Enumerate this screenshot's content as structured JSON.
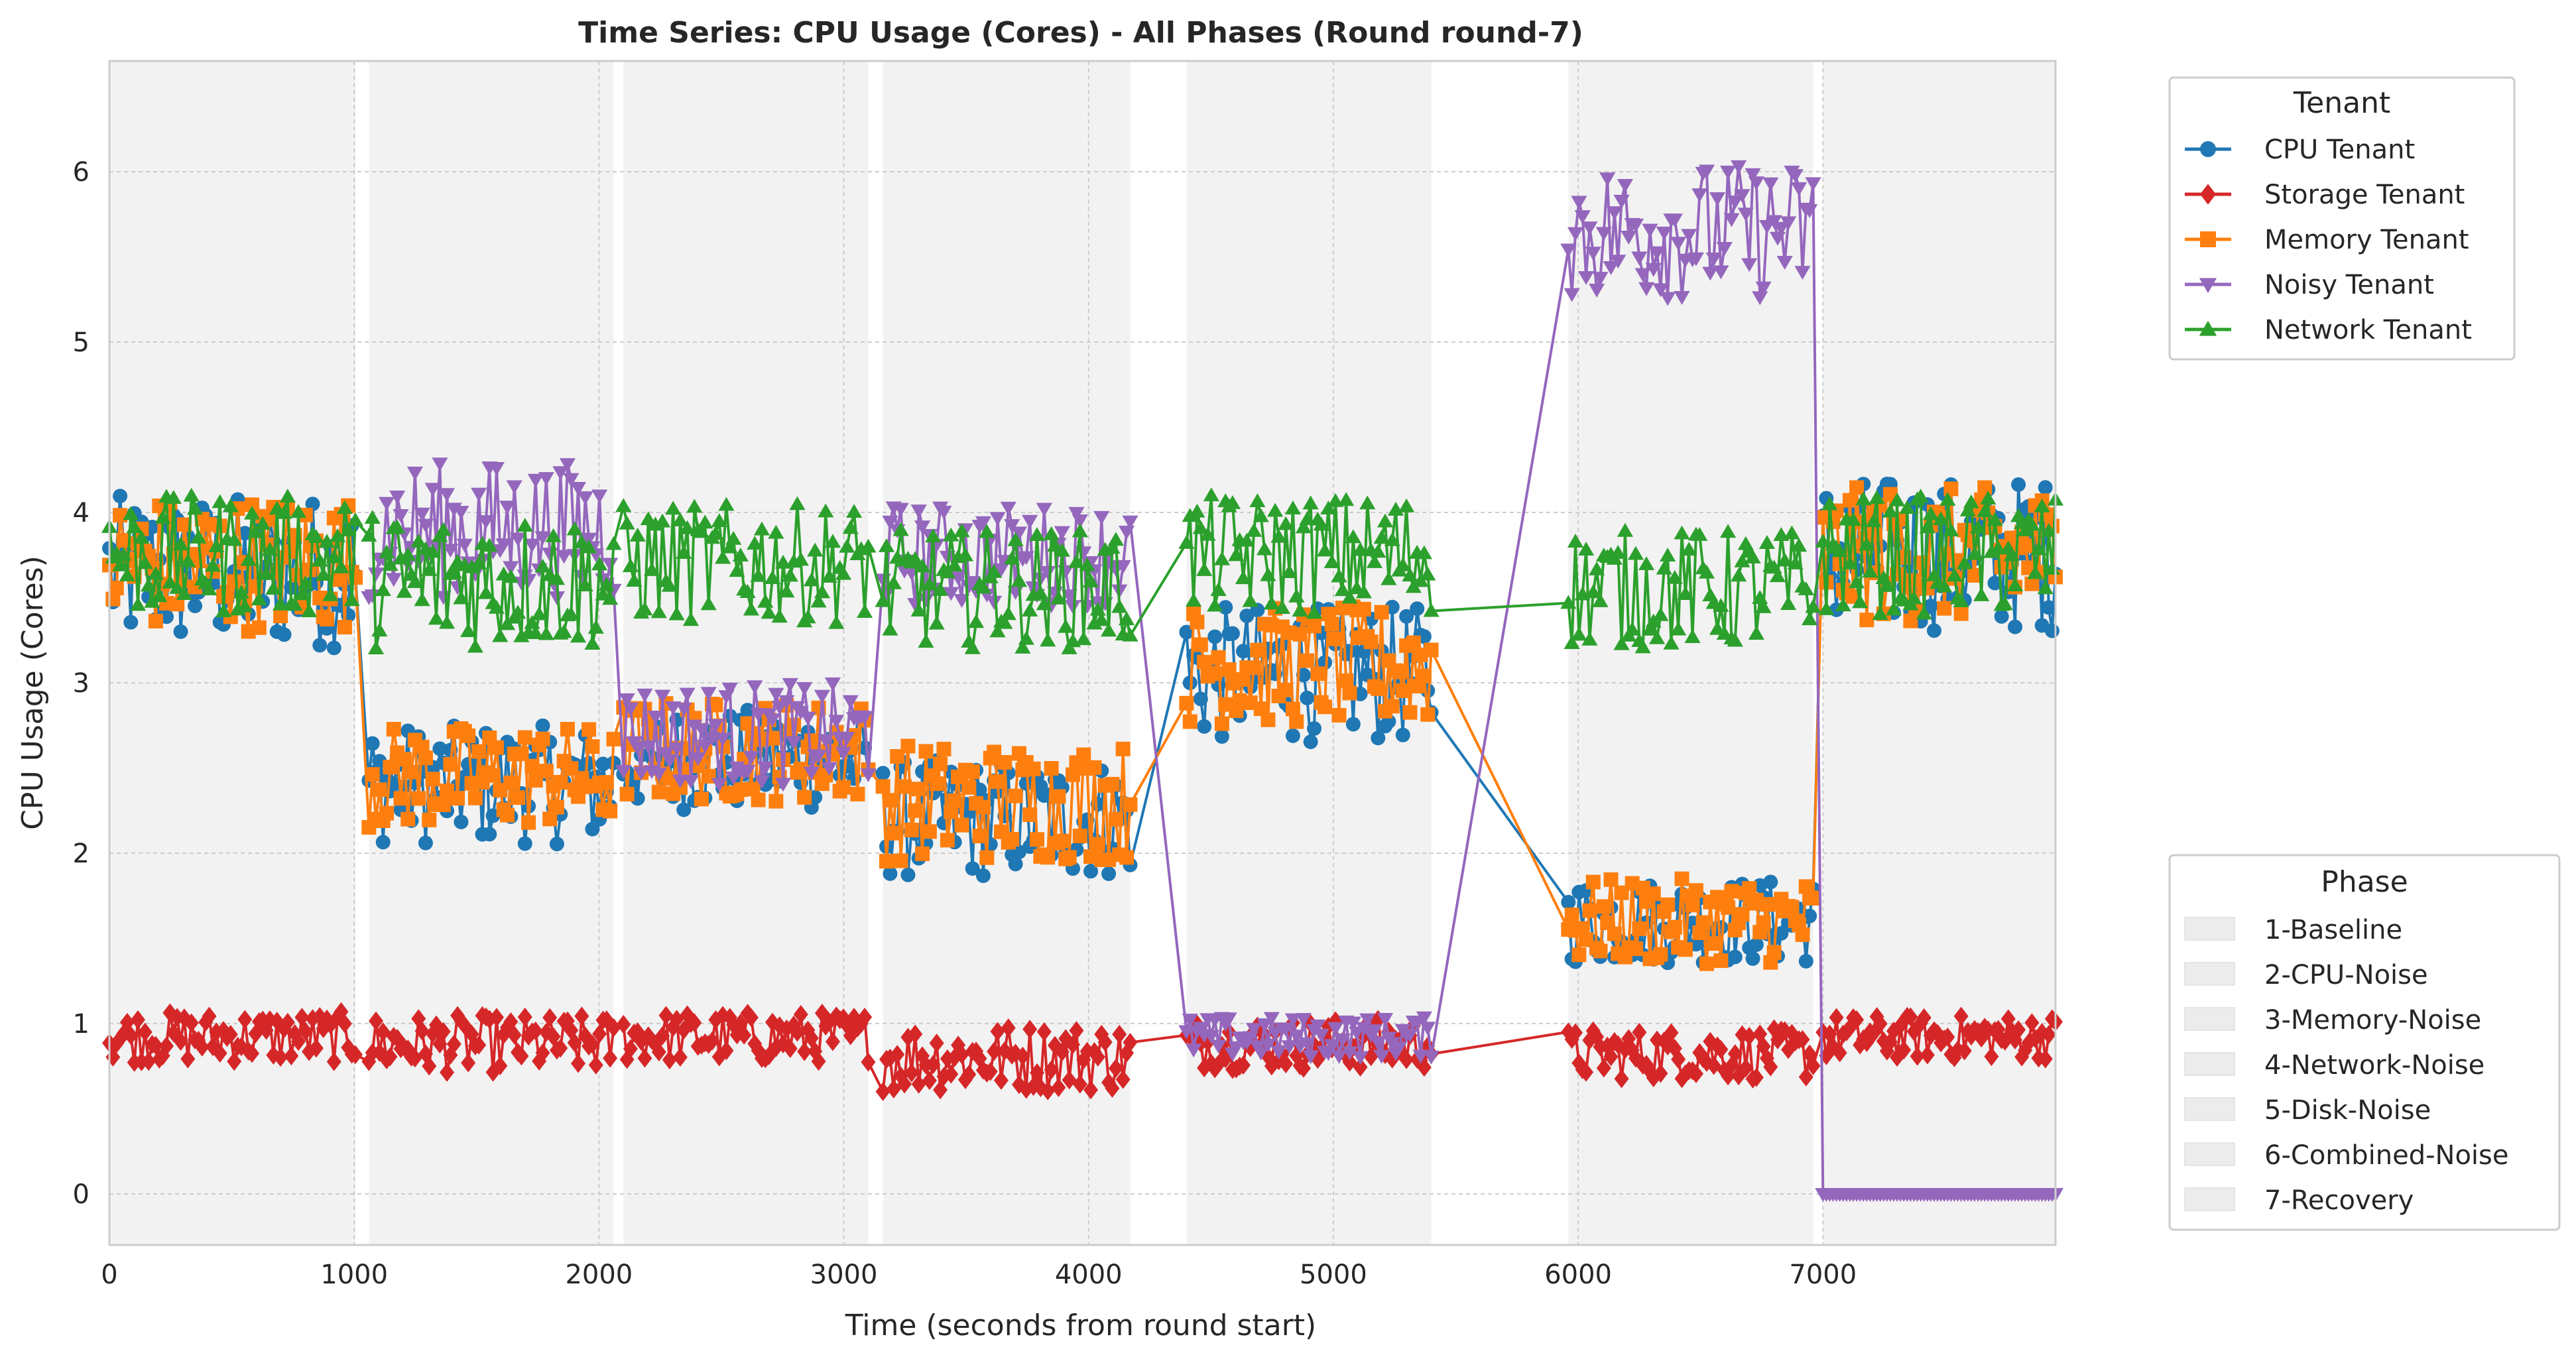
{
  "chart_data": {
    "type": "line",
    "title": "Time Series: CPU Usage (Cores) - All Phases (Round round-7)",
    "xlabel": "Time (seconds from round start)",
    "ylabel": "CPU Usage (Cores)",
    "xlim": [
      0,
      7950
    ],
    "ylim": [
      -0.3,
      6.65
    ],
    "xticks": [
      0,
      1000,
      2000,
      3000,
      4000,
      5000,
      6000,
      7000
    ],
    "yticks": [
      0,
      1,
      2,
      3,
      4,
      5,
      6
    ],
    "grid": true,
    "legend_placement": "outside-right",
    "legend_series_title": "Tenant",
    "legend_phase_title": "Phase",
    "phases": [
      {
        "name": "1-Baseline",
        "start": 0,
        "end": 1005
      },
      {
        "name": "2-CPU-Noise",
        "start": 1060,
        "end": 2060
      },
      {
        "name": "3-Memory-Noise",
        "start": 2100,
        "end": 3100
      },
      {
        "name": "4-Network-Noise",
        "start": 3160,
        "end": 4170
      },
      {
        "name": "5-Disk-Noise",
        "start": 4400,
        "end": 5400
      },
      {
        "name": "6-Combined-Noise",
        "start": 5960,
        "end": 6960
      },
      {
        "name": "7-Recovery",
        "start": 7000,
        "end": 7950
      }
    ],
    "series": [
      {
        "name": "CPU Tenant",
        "color": "#1f77b4",
        "marker": "circle",
        "levels": [
          {
            "start": 0,
            "end": 1005,
            "mean": 3.65,
            "spread": 0.45
          },
          {
            "start": 1060,
            "end": 2060,
            "mean": 2.4,
            "spread": 0.35
          },
          {
            "start": 2100,
            "end": 3100,
            "mean": 2.55,
            "spread": 0.3
          },
          {
            "start": 3160,
            "end": 4170,
            "mean": 2.2,
            "spread": 0.35
          },
          {
            "start": 4400,
            "end": 5400,
            "mean": 3.05,
            "spread": 0.4
          },
          {
            "start": 5960,
            "end": 6960,
            "mean": 1.6,
            "spread": 0.25
          },
          {
            "start": 7000,
            "end": 7950,
            "mean": 3.75,
            "spread": 0.45
          }
        ]
      },
      {
        "name": "Storage Tenant",
        "color": "#d62728",
        "marker": "diamond",
        "levels": [
          {
            "start": 0,
            "end": 1005,
            "mean": 0.92,
            "spread": 0.15
          },
          {
            "start": 1060,
            "end": 2060,
            "mean": 0.88,
            "spread": 0.17
          },
          {
            "start": 2100,
            "end": 3100,
            "mean": 0.92,
            "spread": 0.15
          },
          {
            "start": 3160,
            "end": 4170,
            "mean": 0.8,
            "spread": 0.2
          },
          {
            "start": 4400,
            "end": 5400,
            "mean": 0.88,
            "spread": 0.15
          },
          {
            "start": 5960,
            "end": 6960,
            "mean": 0.82,
            "spread": 0.15
          },
          {
            "start": 7000,
            "end": 7950,
            "mean": 0.92,
            "spread": 0.13
          }
        ]
      },
      {
        "name": "Memory Tenant",
        "color": "#ff7f0e",
        "marker": "square",
        "levels": [
          {
            "start": 0,
            "end": 1005,
            "mean": 3.7,
            "spread": 0.4
          },
          {
            "start": 1060,
            "end": 2060,
            "mean": 2.45,
            "spread": 0.3
          },
          {
            "start": 2100,
            "end": 3100,
            "mean": 2.6,
            "spread": 0.3
          },
          {
            "start": 3160,
            "end": 4170,
            "mean": 2.3,
            "spread": 0.35
          },
          {
            "start": 4400,
            "end": 5400,
            "mean": 3.1,
            "spread": 0.35
          },
          {
            "start": 5960,
            "end": 6960,
            "mean": 1.6,
            "spread": 0.25
          },
          {
            "start": 7000,
            "end": 7950,
            "mean": 3.75,
            "spread": 0.4
          }
        ]
      },
      {
        "name": "Noisy Tenant",
        "color": "#9467bd",
        "marker": "triangle-down",
        "levels": [
          {
            "start": 1060,
            "end": 2060,
            "mean": 3.9,
            "spread": 0.4
          },
          {
            "start": 2100,
            "end": 3100,
            "mean": 2.7,
            "spread": 0.3
          },
          {
            "start": 3160,
            "end": 4170,
            "mean": 3.75,
            "spread": 0.3
          },
          {
            "start": 4400,
            "end": 5400,
            "mean": 0.92,
            "spread": 0.12
          },
          {
            "start": 5960,
            "end": 6960,
            "mean": 5.65,
            "spread": 0.4
          },
          {
            "start": 7000,
            "end": 7950,
            "mean": 0.0,
            "spread": 0.0
          }
        ]
      },
      {
        "name": "Network Tenant",
        "color": "#2ca02c",
        "marker": "triangle-up",
        "levels": [
          {
            "start": 0,
            "end": 1005,
            "mean": 3.75,
            "spread": 0.35
          },
          {
            "start": 1060,
            "end": 2060,
            "mean": 3.6,
            "spread": 0.4
          },
          {
            "start": 2100,
            "end": 3100,
            "mean": 3.7,
            "spread": 0.35
          },
          {
            "start": 3160,
            "end": 4170,
            "mean": 3.55,
            "spread": 0.35
          },
          {
            "start": 4400,
            "end": 5400,
            "mean": 3.75,
            "spread": 0.35
          },
          {
            "start": 5960,
            "end": 6960,
            "mean": 3.55,
            "spread": 0.35
          },
          {
            "start": 7000,
            "end": 7950,
            "mean": 3.75,
            "spread": 0.35
          }
        ]
      }
    ]
  }
}
